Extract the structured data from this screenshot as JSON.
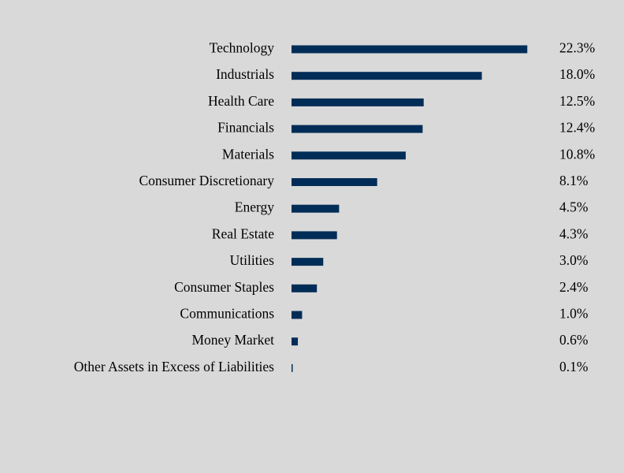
{
  "chart_data": {
    "type": "bar",
    "orientation": "horizontal",
    "title": "",
    "xlabel": "",
    "ylabel": "",
    "grid": false,
    "legend": "none",
    "categories": [
      "Technology",
      "Industrials",
      "Health Care",
      "Financials",
      "Materials",
      "Consumer Discretionary",
      "Energy",
      "Real Estate",
      "Utilities",
      "Consumer Staples",
      "Communications",
      "Money Market",
      "Other Assets in Excess of Liabilities"
    ],
    "values": [
      22.3,
      18.0,
      12.5,
      12.4,
      10.8,
      8.1,
      4.5,
      4.3,
      3.0,
      2.4,
      1.0,
      0.6,
      0.1
    ],
    "value_labels": [
      "22.3%",
      "18.0%",
      "12.5%",
      "12.4%",
      "10.8%",
      "8.1%",
      "4.5%",
      "4.3%",
      "3.0%",
      "2.4%",
      "1.0%",
      "0.6%",
      "0.1%"
    ],
    "unit": "%",
    "colors": {
      "bar": "#002d57",
      "background": "#d9d9d9"
    }
  }
}
